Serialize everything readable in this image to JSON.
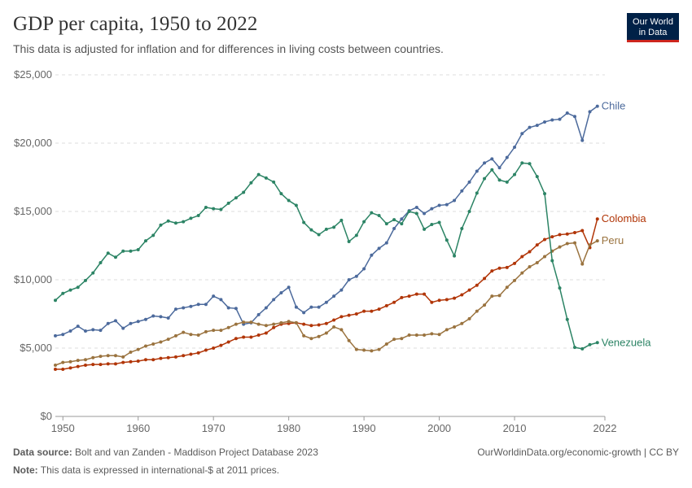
{
  "header": {
    "title": "GDP per capita, 1950 to 2022",
    "subtitle": "This data is adjusted for inflation and for differences in living costs between countries.",
    "logo_line1": "Our World",
    "logo_line2": "in Data"
  },
  "footer": {
    "source_label": "Data source:",
    "source_text": "Bolt and van Zanden - Maddison Project Database 2023",
    "note_label": "Note:",
    "note_text": "This data is expressed in international-$ at 2011 prices.",
    "link_text": "OurWorldinData.org/economic-growth",
    "license_text": " | CC BY"
  },
  "chart_data": {
    "type": "line",
    "title": "GDP per capita, 1950 to 2022",
    "xlabel": "",
    "ylabel": "",
    "xlim": [
      1949,
      2022
    ],
    "ylim": [
      0,
      25000
    ],
    "yticks": [
      0,
      5000,
      10000,
      15000,
      20000,
      25000
    ],
    "ytick_labels": [
      "$0",
      "$5,000",
      "$10,000",
      "$15,000",
      "$20,000",
      "$25,000"
    ],
    "xticks": [
      1950,
      1960,
      1970,
      1980,
      1990,
      2000,
      2010,
      2022
    ],
    "xtick_labels": [
      "1950",
      "1960",
      "1970",
      "1980",
      "1990",
      "2000",
      "2010",
      "2022"
    ],
    "grid": "horizontal dashed",
    "legend": "labels at line ends (right)",
    "x_start": 1949,
    "series": [
      {
        "name": "Chile",
        "color": "#4c6a9c",
        "values": [
          5900,
          6000,
          6250,
          6600,
          6250,
          6350,
          6300,
          6800,
          7000,
          6450,
          6800,
          6950,
          7100,
          7350,
          7300,
          7200,
          7850,
          7950,
          8050,
          8200,
          8200,
          8800,
          8550,
          7950,
          7900,
          6750,
          6850,
          7450,
          7950,
          8550,
          9050,
          9450,
          8000,
          7600,
          8000,
          8000,
          8350,
          8800,
          9250,
          10000,
          10250,
          10800,
          11800,
          12300,
          12700,
          13750,
          14450,
          15050,
          15300,
          14850,
          15200,
          15450,
          15500,
          15800,
          16500,
          17150,
          17950,
          18550,
          18850,
          18200,
          18950,
          19700,
          20700,
          21150,
          21300,
          21550,
          21700,
          21750,
          22200,
          21950,
          20200,
          22300,
          22700
        ]
      },
      {
        "name": "Colombia",
        "color": "#b13507",
        "values": [
          3450,
          3450,
          3550,
          3650,
          3750,
          3800,
          3800,
          3850,
          3850,
          3950,
          4000,
          4050,
          4150,
          4150,
          4250,
          4300,
          4350,
          4450,
          4550,
          4650,
          4850,
          5000,
          5200,
          5450,
          5700,
          5800,
          5800,
          5950,
          6100,
          6500,
          6750,
          6800,
          6850,
          6750,
          6650,
          6700,
          6800,
          7050,
          7300,
          7400,
          7500,
          7700,
          7700,
          7850,
          8100,
          8350,
          8700,
          8800,
          8950,
          8950,
          8350,
          8500,
          8550,
          8650,
          8900,
          9250,
          9600,
          10100,
          10650,
          10850,
          10900,
          11200,
          11700,
          12050,
          12550,
          12950,
          13150,
          13300,
          13350,
          13450,
          13600,
          12350,
          14450
        ]
      },
      {
        "name": "Peru",
        "color": "#9a733f",
        "values": [
          3750,
          3950,
          4000,
          4100,
          4150,
          4300,
          4400,
          4450,
          4450,
          4350,
          4700,
          4900,
          5150,
          5300,
          5450,
          5650,
          5900,
          6150,
          6000,
          5950,
          6200,
          6300,
          6300,
          6500,
          6750,
          6900,
          6900,
          6750,
          6650,
          6750,
          6850,
          6950,
          6850,
          5900,
          5700,
          5850,
          6100,
          6550,
          6350,
          5550,
          4900,
          4850,
          4800,
          4900,
          5300,
          5650,
          5700,
          5950,
          5950,
          5950,
          6050,
          6000,
          6350,
          6550,
          6800,
          7150,
          7700,
          8150,
          8800,
          8850,
          9450,
          9950,
          10500,
          10950,
          11250,
          11700,
          12100,
          12400,
          12650,
          12700,
          11150,
          12550,
          12850
        ]
      },
      {
        "name": "Venezuela",
        "color": "#2c8465",
        "values": [
          8500,
          9000,
          9250,
          9450,
          9950,
          10500,
          11250,
          11950,
          11650,
          12100,
          12100,
          12200,
          12850,
          13250,
          14000,
          14300,
          14150,
          14250,
          14500,
          14700,
          15300,
          15200,
          15150,
          15600,
          16000,
          16400,
          17100,
          17700,
          17450,
          17150,
          16300,
          15800,
          15450,
          14200,
          13650,
          13300,
          13700,
          13850,
          14350,
          12800,
          13250,
          14250,
          14900,
          14700,
          14100,
          14400,
          14100,
          15000,
          14850,
          13700,
          14050,
          14200,
          12900,
          11750,
          13750,
          15000,
          16350,
          17400,
          18050,
          17300,
          17150,
          17700,
          18550,
          18500,
          17550,
          16300,
          11400,
          9400,
          7100,
          5050,
          4950,
          5250,
          5400
        ]
      }
    ]
  }
}
